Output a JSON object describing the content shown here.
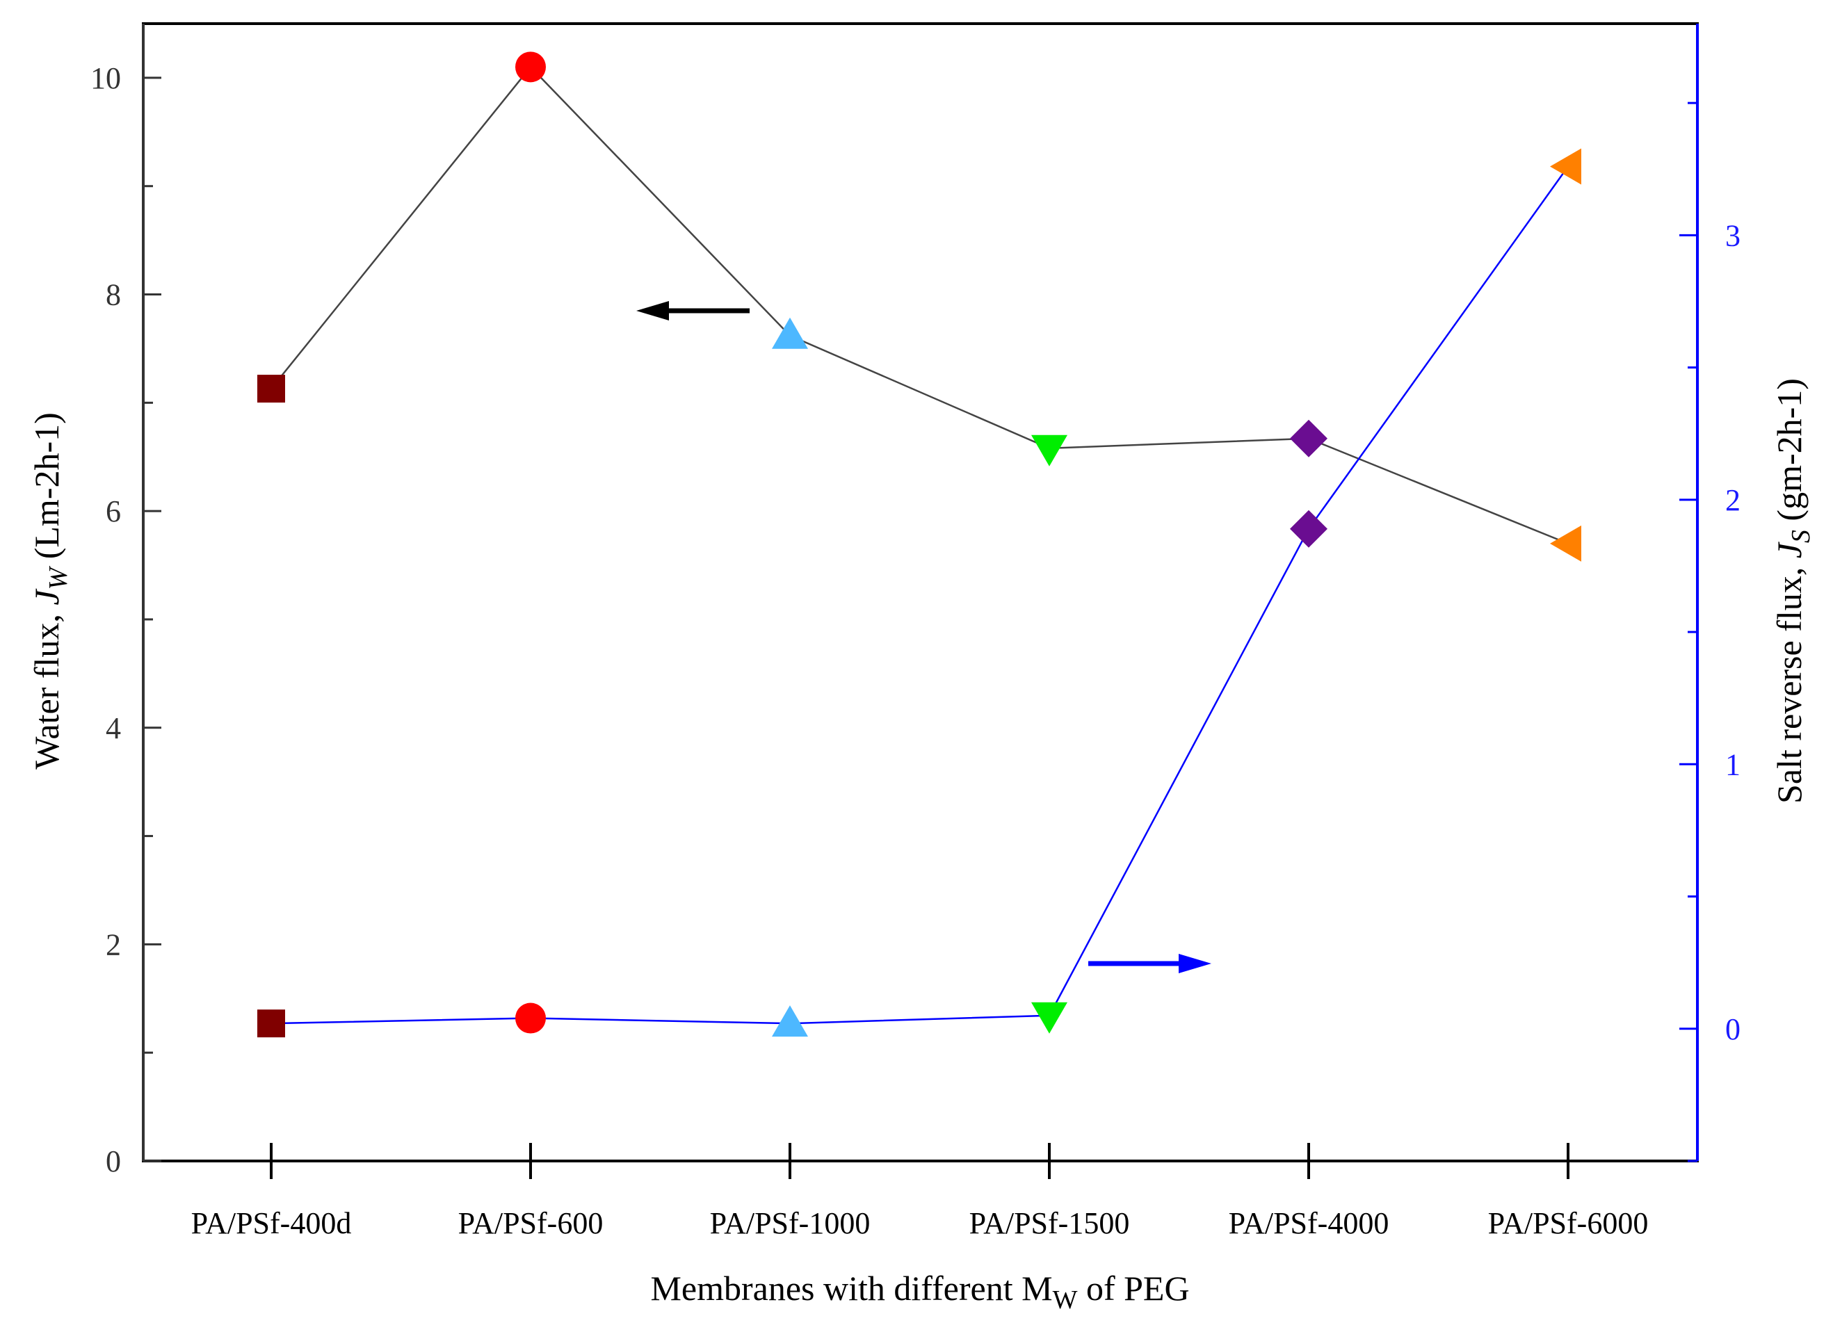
{
  "chart_data": {
    "type": "line",
    "title": "",
    "xlabel": {
      "main": "Membranes with different M",
      "sub": "W",
      "tail": " of PEG"
    },
    "ylabel_left": {
      "prefix": "Water flux, ",
      "italic": "J",
      "sub": "W",
      "tail": " (Lm-2h-1)"
    },
    "ylabel_right": {
      "prefix": "Salt reverse flux, ",
      "italic": "J",
      "sub": "S",
      "tail": " (gm-2h-1)"
    },
    "categories": [
      "PA/PSf-400d",
      "PA/PSf-600",
      "PA/PSf-1000",
      "PA/PSf-1500",
      "PA/PSf-4000",
      "PA/PSf-6000"
    ],
    "ylim_left": [
      0,
      10.5
    ],
    "ylim_right": [
      -0.5,
      3.8
    ],
    "left_ticks": [
      0,
      2,
      4,
      6,
      8,
      10
    ],
    "right_ticks": [
      0,
      1,
      2,
      3
    ],
    "series": [
      {
        "name": "Water flux",
        "axis": "left",
        "line_color": "#444444",
        "values": [
          7.13,
          10.1,
          7.62,
          6.58,
          6.67,
          5.7
        ]
      },
      {
        "name": "Salt reverse flux",
        "axis": "right",
        "line_color": "#0000ff",
        "values": [
          0.02,
          0.04,
          0.02,
          0.05,
          1.89,
          3.26
        ]
      }
    ],
    "markers": [
      {
        "shape": "square",
        "color": "#800000"
      },
      {
        "shape": "circle",
        "color": "#ff0000"
      },
      {
        "shape": "triangle-up",
        "color": "#4db8ff"
      },
      {
        "shape": "triangle-down",
        "color": "#00ee00"
      },
      {
        "shape": "diamond",
        "color": "#6a0d91"
      },
      {
        "shape": "triangle-left",
        "color": "#ff8000"
      }
    ],
    "annotations": [
      {
        "type": "arrow",
        "direction": "left",
        "points_to": "left axis",
        "color": "#000000"
      },
      {
        "type": "arrow",
        "direction": "right",
        "points_to": "right axis",
        "color": "#0000ff"
      }
    ],
    "colors": {
      "left_axis": "#000000",
      "right_axis": "#0000ff"
    }
  }
}
